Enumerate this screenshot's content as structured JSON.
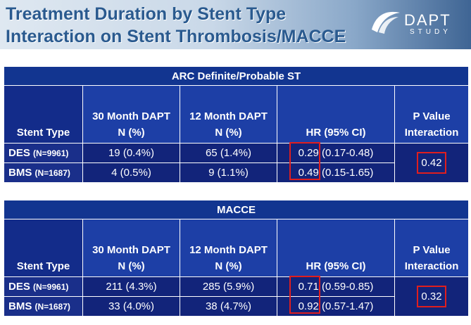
{
  "header": {
    "title_line1": "Treatment Duration by Stent Type",
    "title_line2": "Interaction on Stent Thrombosis/MACCE",
    "logo_word": "DAPT",
    "logo_sub": "STUDY"
  },
  "colors": {
    "table_background": "#12246e",
    "section_header": "#123590",
    "highlight_box": "#e01e1e",
    "title_text": "#2a5a8f"
  },
  "columns": {
    "stent_type": "Stent Type",
    "dapt30_line1": "30 Month DAPT",
    "dapt30_line2": "N (%)",
    "dapt12_line1": "12 Month DAPT",
    "dapt12_line2": "N (%)",
    "hr": "HR (95% CI)",
    "p_line1": "P Value",
    "p_line2": "Interaction"
  },
  "sections": [
    {
      "title": "ARC Definite/Probable ST",
      "rows": [
        {
          "type": "DES",
          "n": "(N=9961)",
          "dapt30": "19 (0.4%)",
          "dapt12": "65 (1.4%)",
          "hr_value": "0.29",
          "hr_ci": "(0.17-0.48)"
        },
        {
          "type": "BMS",
          "n": "(N=1687)",
          "dapt30": "4 (0.5%)",
          "dapt12": "9 (1.1%)",
          "hr_value": "0.49",
          "hr_ci": "(0.15-1.65)"
        }
      ],
      "p_interaction": "0.42"
    },
    {
      "title": "MACCE",
      "rows": [
        {
          "type": "DES",
          "n": "(N=9961)",
          "dapt30": "211 (4.3%)",
          "dapt12": "285 (5.9%)",
          "hr_value": "0.71",
          "hr_ci": "(0.59-0.85)"
        },
        {
          "type": "BMS",
          "n": "(N=1687)",
          "dapt30": "33 (4.0%)",
          "dapt12": "38 (4.7%)",
          "hr_value": "0.92",
          "hr_ci": "(0.57-1.47)"
        }
      ],
      "p_interaction": "0.32"
    }
  ]
}
